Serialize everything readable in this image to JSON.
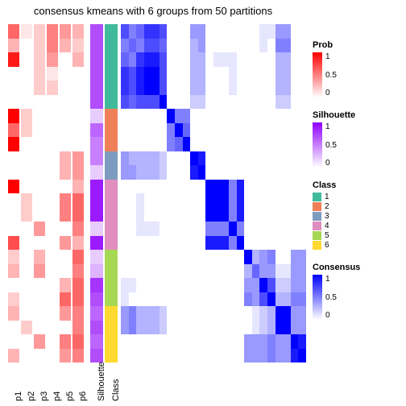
{
  "title": "consensus kmeans with 6 groups from 50 partitions",
  "layout": {
    "n_rows": 24,
    "annot_col_width": 14,
    "silhouette_col_width": 16,
    "class_col_width": 16,
    "annot_gap": 2
  },
  "class_colors": {
    "1": "#40ba9b",
    "2": "#f08057",
    "3": "#7e9bc0",
    "4": "#e08dbf",
    "5": "#a6d854",
    "6": "#ffd92f"
  },
  "prob_scale": {
    "low": "#ffffff",
    "high": "#ff0000",
    "ticks": [
      "1",
      "0.5",
      "0"
    ]
  },
  "silhouette_scale": {
    "low": "#ffffff",
    "high": "#9000ff",
    "ticks": [
      "1",
      "0.5",
      "0"
    ]
  },
  "consensus_scale": {
    "low": "#ffffff",
    "high": "#0000ff",
    "ticks": [
      "1",
      "0.5",
      "0"
    ]
  },
  "annot_cols": [
    {
      "name": "p1",
      "vals": [
        0.6,
        0.3,
        0.9,
        0.0,
        0.0,
        0.0,
        1.0,
        0.6,
        1.0,
        0.0,
        0.0,
        1.0,
        0.0,
        0.0,
        0.0,
        0.7,
        0.2,
        0.3,
        0.0,
        0.2,
        0.3,
        0.0,
        0.0,
        0.3
      ]
    },
    {
      "name": "p2",
      "vals": [
        0.1,
        0.0,
        0.0,
        0.0,
        0.0,
        0.0,
        0.2,
        0.2,
        0.0,
        0.0,
        0.0,
        0.0,
        0.2,
        0.2,
        0.0,
        0.0,
        0.0,
        0.0,
        0.0,
        0.0,
        0.0,
        0.2,
        0.0,
        0.0
      ]
    },
    {
      "name": "p3",
      "vals": [
        0.2,
        0.2,
        0.2,
        0.2,
        0.2,
        0.0,
        0.0,
        0.0,
        0.0,
        0.0,
        0.0,
        0.0,
        0.0,
        0.0,
        0.4,
        0.0,
        0.3,
        0.4,
        0.0,
        0.0,
        0.0,
        0.0,
        0.4,
        0.0
      ]
    },
    {
      "name": "p4",
      "vals": [
        0.5,
        0.5,
        0.4,
        0.1,
        0.2,
        0.0,
        0.0,
        0.0,
        0.0,
        0.0,
        0.0,
        0.0,
        0.0,
        0.0,
        0.0,
        0.0,
        0.0,
        0.0,
        0.0,
        0.0,
        0.0,
        0.0,
        0.0,
        0.0
      ]
    },
    {
      "name": "p5",
      "vals": [
        0.4,
        0.3,
        0.0,
        0.0,
        0.0,
        0.0,
        0.0,
        0.0,
        0.0,
        0.3,
        0.3,
        0.0,
        0.5,
        0.5,
        0.0,
        0.4,
        0.0,
        0.0,
        0.3,
        0.6,
        0.4,
        0.0,
        0.5,
        0.4
      ]
    },
    {
      "name": "p6",
      "vals": [
        0.3,
        0.2,
        0.3,
        0.0,
        0.0,
        0.0,
        0.0,
        0.0,
        0.0,
        0.4,
        0.4,
        0.3,
        0.6,
        0.6,
        0.5,
        0.3,
        0.6,
        0.5,
        0.6,
        0.6,
        0.5,
        0.5,
        0.6,
        0.5
      ]
    }
  ],
  "silhouette_vals": [
    0.7,
    0.7,
    0.7,
    0.7,
    0.7,
    0.7,
    0.2,
    0.6,
    0.5,
    0.5,
    0.2,
    0.9,
    0.9,
    0.9,
    0.2,
    0.9,
    0.2,
    0.3,
    0.8,
    0.7,
    0.6,
    0.7,
    0.6,
    0.7
  ],
  "class_vals": [
    1,
    1,
    1,
    1,
    1,
    1,
    2,
    2,
    2,
    3,
    3,
    4,
    4,
    4,
    4,
    4,
    5,
    5,
    5,
    5,
    6,
    6,
    6,
    6
  ],
  "consensus_matrix": [
    [
      0.7,
      0.5,
      0.6,
      0.8,
      0.8,
      0.7,
      0.0,
      0.0,
      0.0,
      0.4,
      0.4,
      0.0,
      0.0,
      0.0,
      0.0,
      0.0,
      0.0,
      0.0,
      0.1,
      0.1,
      0.4,
      0.4,
      0.0,
      0.0
    ],
    [
      0.5,
      0.6,
      0.5,
      0.7,
      0.7,
      0.6,
      0.0,
      0.0,
      0.0,
      0.3,
      0.4,
      0.0,
      0.0,
      0.0,
      0.0,
      0.0,
      0.0,
      0.0,
      0.1,
      0.0,
      0.5,
      0.5,
      0.0,
      0.0
    ],
    [
      0.6,
      0.5,
      0.8,
      0.9,
      0.9,
      0.7,
      0.0,
      0.0,
      0.0,
      0.3,
      0.3,
      0.0,
      0.1,
      0.1,
      0.1,
      0.0,
      0.0,
      0.0,
      0.0,
      0.0,
      0.3,
      0.3,
      0.0,
      0.0
    ],
    [
      0.8,
      0.7,
      0.9,
      1.0,
      1.0,
      0.7,
      0.0,
      0.0,
      0.0,
      0.3,
      0.3,
      0.0,
      0.0,
      0.0,
      0.1,
      0.0,
      0.0,
      0.0,
      0.0,
      0.0,
      0.3,
      0.3,
      0.0,
      0.0
    ],
    [
      0.8,
      0.7,
      0.9,
      1.0,
      1.0,
      0.7,
      0.0,
      0.0,
      0.0,
      0.3,
      0.3,
      0.0,
      0.0,
      0.0,
      0.1,
      0.0,
      0.0,
      0.0,
      0.0,
      0.0,
      0.3,
      0.3,
      0.0,
      0.0
    ],
    [
      0.7,
      0.6,
      0.7,
      0.7,
      0.7,
      1.0,
      0.0,
      0.0,
      0.0,
      0.2,
      0.2,
      0.0,
      0.0,
      0.0,
      0.0,
      0.0,
      0.0,
      0.0,
      0.0,
      0.0,
      0.2,
      0.2,
      0.0,
      0.0
    ],
    [
      0.0,
      0.0,
      0.0,
      0.0,
      0.0,
      0.0,
      1.0,
      0.5,
      0.5,
      0.0,
      0.0,
      0.0,
      0.0,
      0.0,
      0.0,
      0.0,
      0.0,
      0.0,
      0.0,
      0.0,
      0.0,
      0.0,
      0.0,
      0.0
    ],
    [
      0.0,
      0.0,
      0.0,
      0.0,
      0.0,
      0.0,
      0.5,
      1.0,
      0.6,
      0.0,
      0.0,
      0.0,
      0.0,
      0.0,
      0.0,
      0.0,
      0.0,
      0.0,
      0.0,
      0.0,
      0.0,
      0.0,
      0.0,
      0.0
    ],
    [
      0.0,
      0.0,
      0.0,
      0.0,
      0.0,
      0.0,
      0.5,
      0.6,
      1.0,
      0.0,
      0.0,
      0.0,
      0.0,
      0.0,
      0.0,
      0.0,
      0.0,
      0.0,
      0.0,
      0.0,
      0.0,
      0.0,
      0.0,
      0.0
    ],
    [
      0.4,
      0.3,
      0.3,
      0.3,
      0.3,
      0.2,
      0.0,
      0.0,
      0.0,
      1.0,
      0.9,
      0.0,
      0.0,
      0.0,
      0.0,
      0.0,
      0.0,
      0.0,
      0.0,
      0.0,
      0.0,
      0.0,
      0.0,
      0.0
    ],
    [
      0.4,
      0.4,
      0.3,
      0.3,
      0.3,
      0.2,
      0.0,
      0.0,
      0.0,
      0.9,
      1.0,
      0.0,
      0.0,
      0.0,
      0.0,
      0.0,
      0.0,
      0.0,
      0.0,
      0.0,
      0.0,
      0.0,
      0.0,
      0.0
    ],
    [
      0.0,
      0.0,
      0.0,
      0.0,
      0.0,
      0.0,
      0.0,
      0.0,
      0.0,
      0.0,
      0.0,
      1.0,
      1.0,
      1.0,
      0.5,
      0.9,
      0.0,
      0.0,
      0.0,
      0.0,
      0.0,
      0.0,
      0.0,
      0.0
    ],
    [
      0.0,
      0.0,
      0.1,
      0.0,
      0.0,
      0.0,
      0.0,
      0.0,
      0.0,
      0.0,
      0.0,
      1.0,
      1.0,
      1.0,
      0.5,
      0.9,
      0.0,
      0.0,
      0.0,
      0.0,
      0.0,
      0.0,
      0.0,
      0.0
    ],
    [
      0.0,
      0.0,
      0.1,
      0.0,
      0.0,
      0.0,
      0.0,
      0.0,
      0.0,
      0.0,
      0.0,
      1.0,
      1.0,
      1.0,
      0.5,
      0.9,
      0.0,
      0.0,
      0.0,
      0.0,
      0.0,
      0.0,
      0.0,
      0.0
    ],
    [
      0.0,
      0.0,
      0.1,
      0.1,
      0.1,
      0.0,
      0.0,
      0.0,
      0.0,
      0.0,
      0.0,
      0.5,
      0.5,
      0.5,
      1.0,
      0.5,
      0.0,
      0.0,
      0.0,
      0.0,
      0.0,
      0.0,
      0.0,
      0.0
    ],
    [
      0.0,
      0.0,
      0.0,
      0.0,
      0.0,
      0.0,
      0.0,
      0.0,
      0.0,
      0.0,
      0.0,
      0.9,
      0.9,
      0.9,
      0.5,
      1.0,
      0.0,
      0.0,
      0.0,
      0.0,
      0.0,
      0.0,
      0.0,
      0.0
    ],
    [
      0.0,
      0.0,
      0.0,
      0.0,
      0.0,
      0.0,
      0.0,
      0.0,
      0.0,
      0.0,
      0.0,
      0.0,
      0.0,
      0.0,
      0.0,
      0.0,
      1.0,
      0.3,
      0.4,
      0.5,
      0.0,
      0.0,
      0.4,
      0.4
    ],
    [
      0.0,
      0.0,
      0.0,
      0.0,
      0.0,
      0.0,
      0.0,
      0.0,
      0.0,
      0.0,
      0.0,
      0.0,
      0.0,
      0.0,
      0.0,
      0.0,
      0.3,
      0.6,
      0.4,
      0.4,
      0.1,
      0.1,
      0.4,
      0.4
    ],
    [
      0.1,
      0.1,
      0.0,
      0.0,
      0.0,
      0.0,
      0.0,
      0.0,
      0.0,
      0.0,
      0.0,
      0.0,
      0.0,
      0.0,
      0.0,
      0.0,
      0.4,
      0.4,
      1.0,
      0.7,
      0.2,
      0.2,
      0.4,
      0.4
    ],
    [
      0.1,
      0.0,
      0.0,
      0.0,
      0.0,
      0.0,
      0.0,
      0.0,
      0.0,
      0.0,
      0.0,
      0.0,
      0.0,
      0.0,
      0.0,
      0.0,
      0.5,
      0.4,
      0.7,
      1.0,
      0.3,
      0.3,
      0.5,
      0.5
    ],
    [
      0.4,
      0.5,
      0.3,
      0.3,
      0.3,
      0.2,
      0.0,
      0.0,
      0.0,
      0.0,
      0.0,
      0.0,
      0.0,
      0.0,
      0.0,
      0.0,
      0.0,
      0.1,
      0.2,
      0.3,
      1.0,
      1.0,
      0.4,
      0.4
    ],
    [
      0.4,
      0.5,
      0.3,
      0.3,
      0.3,
      0.2,
      0.0,
      0.0,
      0.0,
      0.0,
      0.0,
      0.0,
      0.0,
      0.0,
      0.0,
      0.0,
      0.0,
      0.1,
      0.2,
      0.3,
      1.0,
      1.0,
      0.4,
      0.4
    ],
    [
      0.0,
      0.0,
      0.0,
      0.0,
      0.0,
      0.0,
      0.0,
      0.0,
      0.0,
      0.0,
      0.0,
      0.0,
      0.0,
      0.0,
      0.0,
      0.0,
      0.4,
      0.4,
      0.4,
      0.5,
      0.4,
      0.4,
      1.0,
      0.9
    ],
    [
      0.0,
      0.0,
      0.0,
      0.0,
      0.0,
      0.0,
      0.0,
      0.0,
      0.0,
      0.0,
      0.0,
      0.0,
      0.0,
      0.0,
      0.0,
      0.0,
      0.4,
      0.4,
      0.4,
      0.5,
      0.4,
      0.4,
      0.9,
      1.0
    ]
  ],
  "column_labels": [
    "p1",
    "p2",
    "p3",
    "p4",
    "p5",
    "p6",
    "Silhouette",
    "Class"
  ],
  "legends": {
    "prob": {
      "title": "Prob"
    },
    "silhouette": {
      "title": "Silhouette"
    },
    "class": {
      "title": "Class",
      "items": [
        "1",
        "2",
        "3",
        "4",
        "5",
        "6"
      ]
    },
    "consensus": {
      "title": "Consensus"
    }
  }
}
